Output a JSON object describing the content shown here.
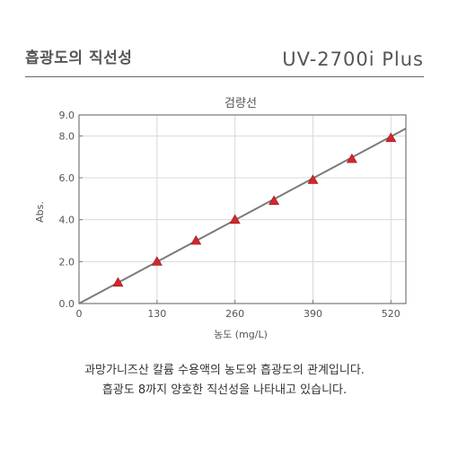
{
  "header": {
    "title": "흡광도의 직선성",
    "model": "UV-2700i Plus"
  },
  "caption": {
    "line1": "과망가니즈산 칼륨 수용액의 농도와 흡광도의 관계입니다.",
    "line2": "흡광도 8까지 양호한 직선성을 나타내고 있습니다."
  },
  "colors": {
    "marker": "#d0282c",
    "line": "#7a7a7a",
    "grid": "#d8d8d8",
    "axis_text": "#555555"
  },
  "chart_data": {
    "type": "scatter",
    "title": "검량선",
    "xlabel": "농도 (mg/L)",
    "ylabel": "Abs.",
    "xlim": [
      0,
      545
    ],
    "ylim": [
      0,
      9.0
    ],
    "xticks": [
      0,
      130,
      260,
      390,
      520
    ],
    "xtick_labels": [
      "0",
      "130",
      "260",
      "390",
      "520"
    ],
    "yticks": [
      0,
      2.0,
      4.0,
      6.0,
      8.0,
      9.0
    ],
    "ytick_labels": [
      "0.0",
      "2.0",
      "4.0",
      "6.0",
      "8.0",
      "9.0"
    ],
    "grid": true,
    "series": [
      {
        "marker": "triangle",
        "x": [
          65,
          130,
          195,
          260,
          325,
          390,
          455,
          520
        ],
        "y": [
          1.0,
          2.0,
          3.0,
          4.0,
          4.9,
          5.9,
          6.9,
          7.9
        ]
      }
    ],
    "fit_line": {
      "x": [
        0,
        545
      ],
      "y": [
        0,
        8.35
      ]
    }
  }
}
